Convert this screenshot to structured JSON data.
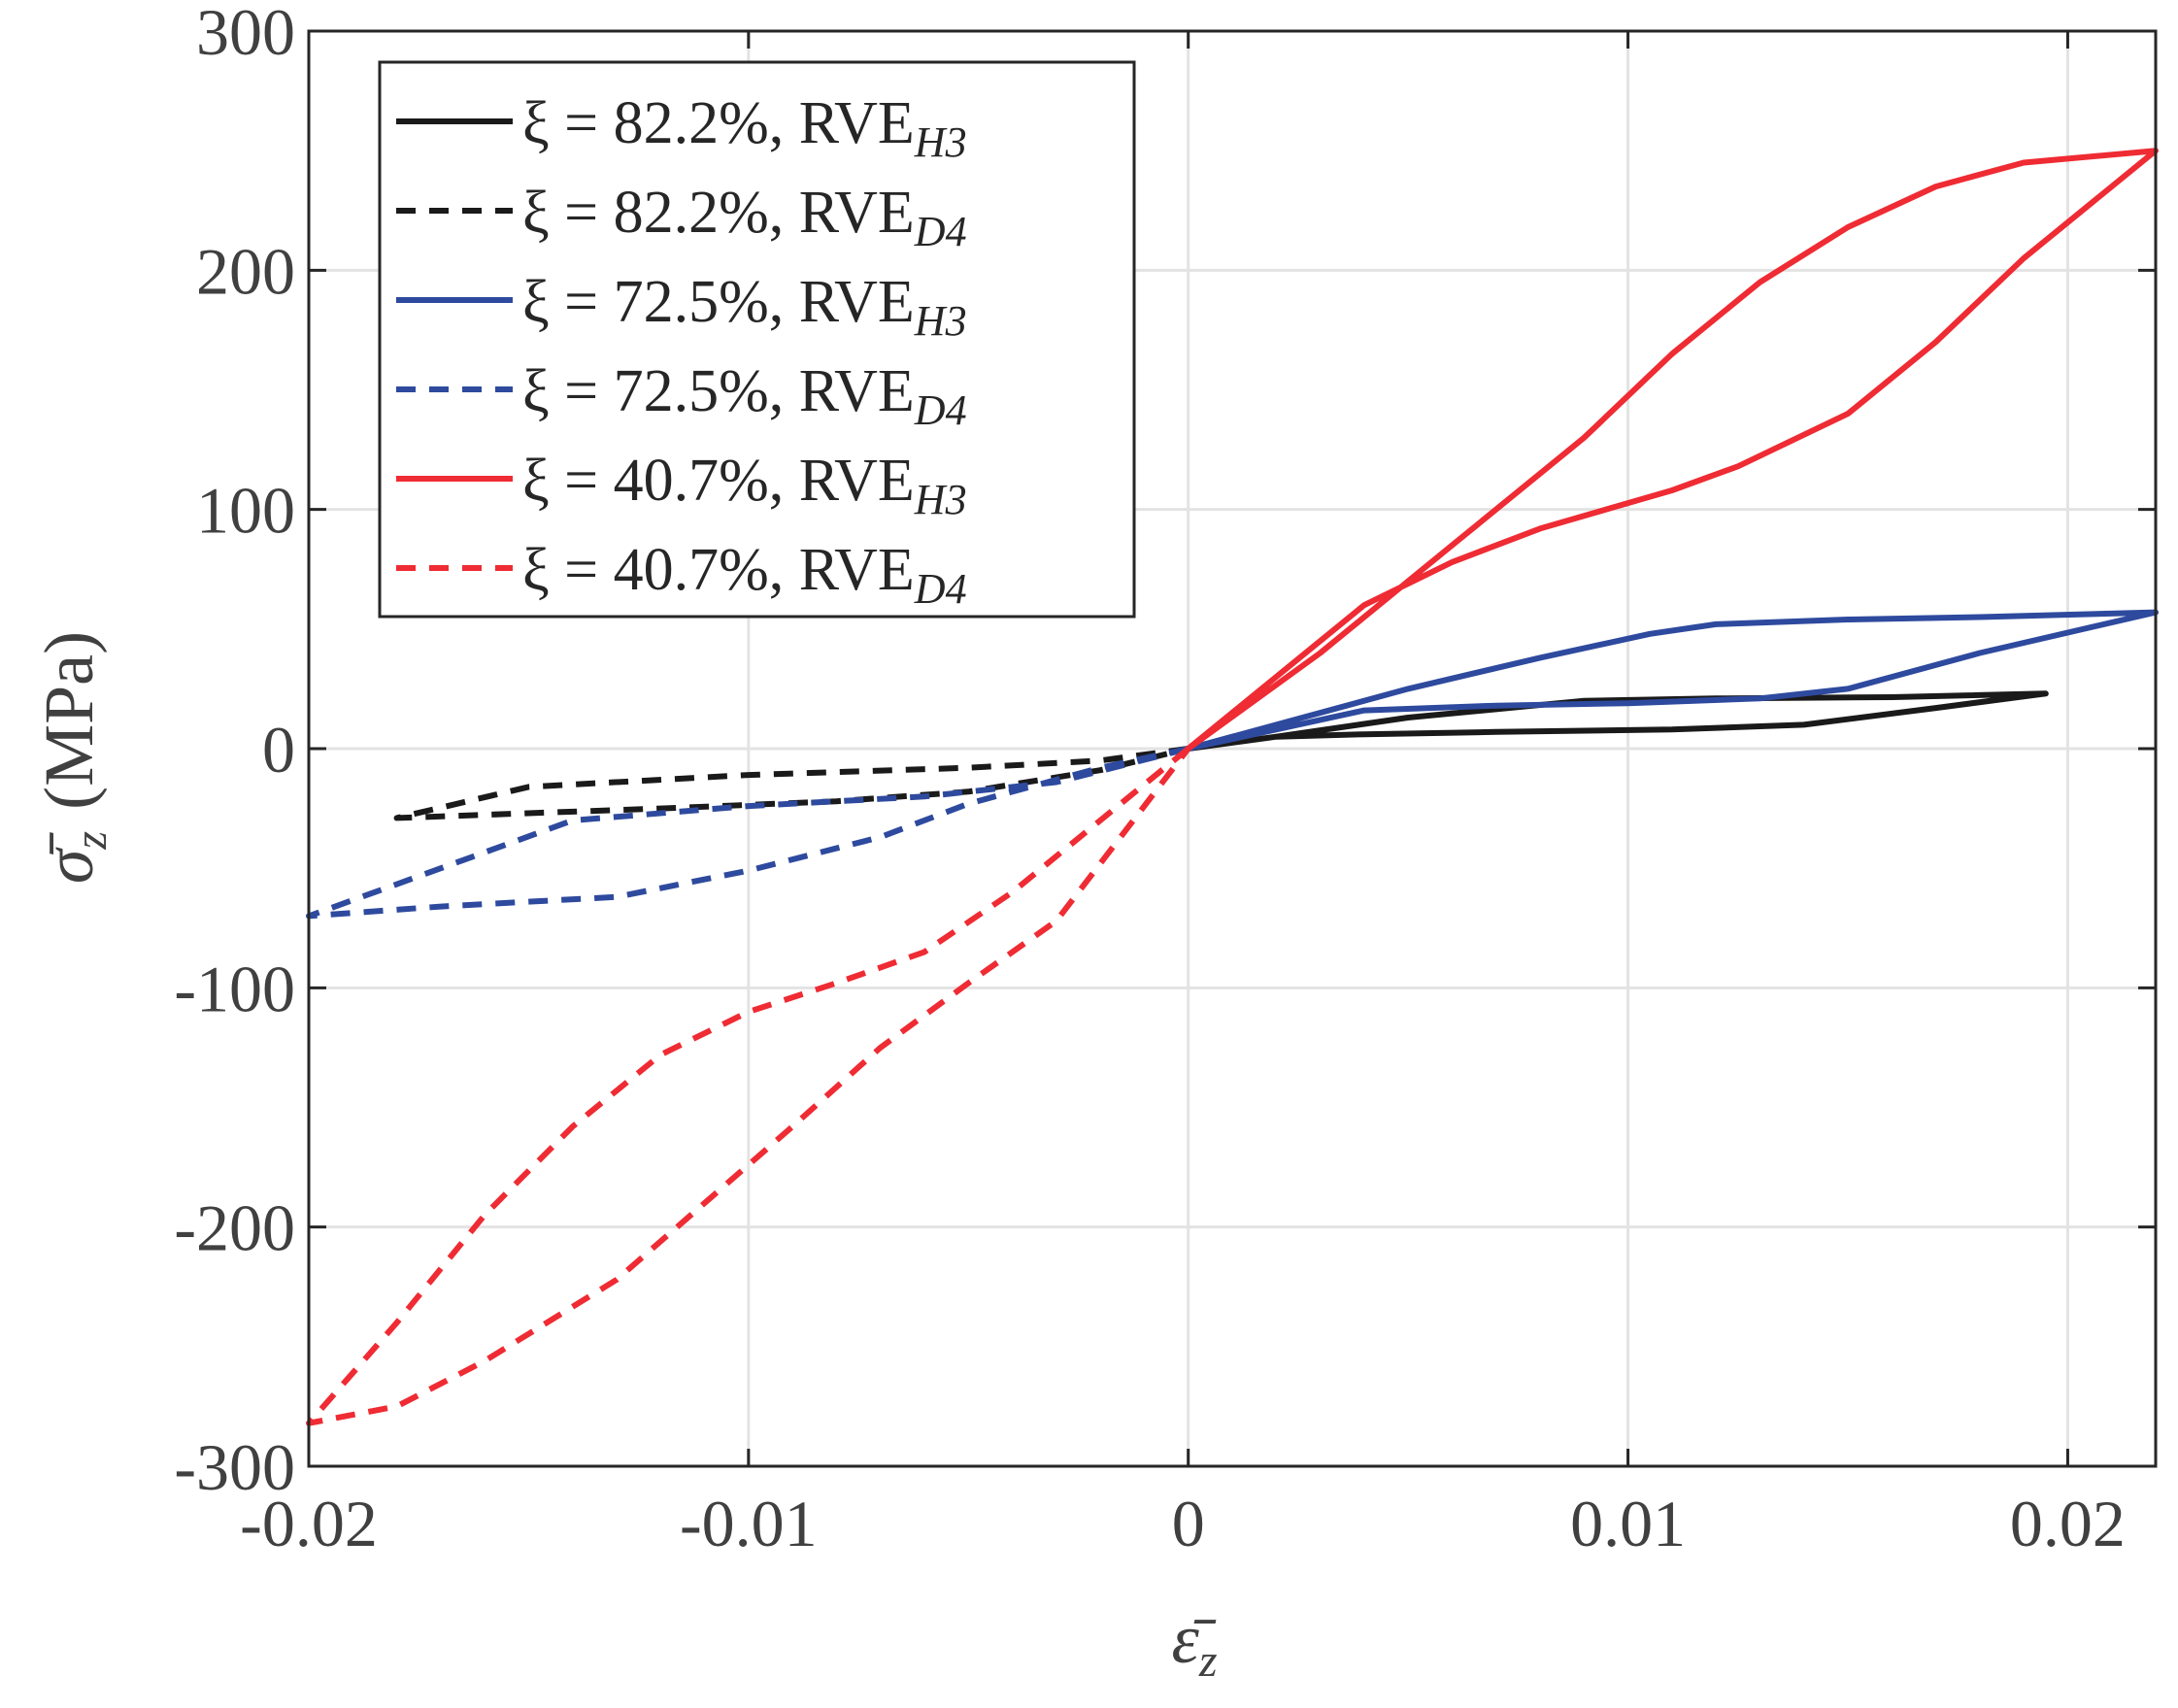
{
  "chart_data": {
    "type": "line",
    "title": "",
    "xlabel": "ε̄",
    "xlabel_sub": "z",
    "ylabel": "σ̄",
    "ylabel_sub": "z",
    "ylabel_unit": "(MPa)",
    "xlim": [
      -0.02,
      0.022
    ],
    "ylim": [
      -300,
      300
    ],
    "grid": true,
    "legend_position": "top-left",
    "xticks": [
      -0.02,
      -0.01,
      0,
      0.01,
      0.02
    ],
    "xtick_labels": [
      "-0.02",
      "-0.01",
      "0",
      "0.01",
      "0.02"
    ],
    "yticks": [
      -300,
      -200,
      -100,
      0,
      100,
      200,
      300
    ],
    "ytick_labels": [
      "-300",
      "-200",
      "-100",
      "0",
      "100",
      "200",
      "300"
    ],
    "series": [
      {
        "name": "ξ = 82.2%, RVE",
        "name_sub": "H3",
        "color": "#1a1a1a",
        "dash": "solid",
        "x": [
          0,
          0.002,
          0.005,
          0.009,
          0.012,
          0.016,
          0.0195,
          0.0195,
          0.017,
          0.014,
          0.011,
          0.007,
          0.004,
          0.002,
          0
        ],
        "y": [
          0,
          5,
          13,
          20,
          21,
          21.5,
          23,
          23,
          17,
          10,
          8,
          7,
          6,
          5,
          0
        ]
      },
      {
        "name": "ξ = 82.2%, RVE",
        "name_sub": "D4",
        "color": "#1a1a1a",
        "dash": "dashed",
        "x": [
          0,
          -0.002,
          -0.005,
          -0.01,
          -0.015,
          -0.018,
          -0.018,
          -0.015,
          -0.012,
          -0.008,
          -0.005,
          -0.002,
          0
        ],
        "y": [
          0,
          -5,
          -8,
          -11,
          -16,
          -29,
          -29,
          -27,
          -25,
          -22,
          -18,
          -9,
          0
        ]
      },
      {
        "name": "ξ = 72.5%, RVE",
        "name_sub": "H3",
        "color": "#2e4a9e",
        "dash": "solid",
        "x": [
          0,
          0.002,
          0.005,
          0.008,
          0.0105,
          0.012,
          0.015,
          0.018,
          0.022,
          0.022,
          0.018,
          0.015,
          0.013,
          0.01,
          0.007,
          0.004,
          0
        ],
        "y": [
          0,
          10,
          25,
          38,
          48,
          52,
          54,
          55,
          57,
          57,
          40,
          25,
          21,
          19,
          18,
          16,
          0
        ]
      },
      {
        "name": "ξ = 72.5%, RVE",
        "name_sub": "D4",
        "color": "#2e4a9e",
        "dash": "dashed",
        "x": [
          0,
          -0.002,
          -0.005,
          -0.007,
          -0.01,
          -0.013,
          -0.017,
          -0.02,
          -0.02,
          -0.017,
          -0.014,
          -0.01,
          -0.006,
          -0.003,
          0
        ],
        "y": [
          0,
          -8,
          -23,
          -37,
          -51,
          -62,
          -66,
          -70,
          -70,
          -50,
          -30,
          -24,
          -20,
          -14,
          0
        ]
      },
      {
        "name": "ξ = 40.7%, RVE",
        "name_sub": "H3",
        "color": "#ef2b33",
        "dash": "solid",
        "x": [
          0,
          0.003,
          0.006,
          0.009,
          0.011,
          0.013,
          0.015,
          0.017,
          0.019,
          0.022,
          0.022,
          0.019,
          0.017,
          0.015,
          0.0125,
          0.011,
          0.008,
          0.006,
          0.004,
          0.002,
          0
        ],
        "y": [
          0,
          40,
          85,
          130,
          165,
          195,
          218,
          235,
          245,
          250,
          250,
          205,
          170,
          140,
          118,
          108,
          92,
          78,
          60,
          30,
          0
        ]
      },
      {
        "name": "ξ = 40.7%, RVE",
        "name_sub": "D4",
        "color": "#ef2b33",
        "dash": "dashed",
        "x": [
          0,
          -0.002,
          -0.004,
          -0.006,
          -0.008,
          -0.01,
          -0.012,
          -0.014,
          -0.016,
          -0.018,
          -0.02,
          -0.02,
          -0.018,
          -0.016,
          -0.013,
          -0.011,
          -0.009,
          -0.007,
          -0.005,
          -0.003,
          0
        ],
        "y": [
          0,
          -30,
          -60,
          -85,
          -98,
          -110,
          -128,
          -158,
          -195,
          -240,
          -282,
          -282,
          -275,
          -256,
          -222,
          -190,
          -158,
          -125,
          -98,
          -72,
          0
        ]
      }
    ]
  }
}
